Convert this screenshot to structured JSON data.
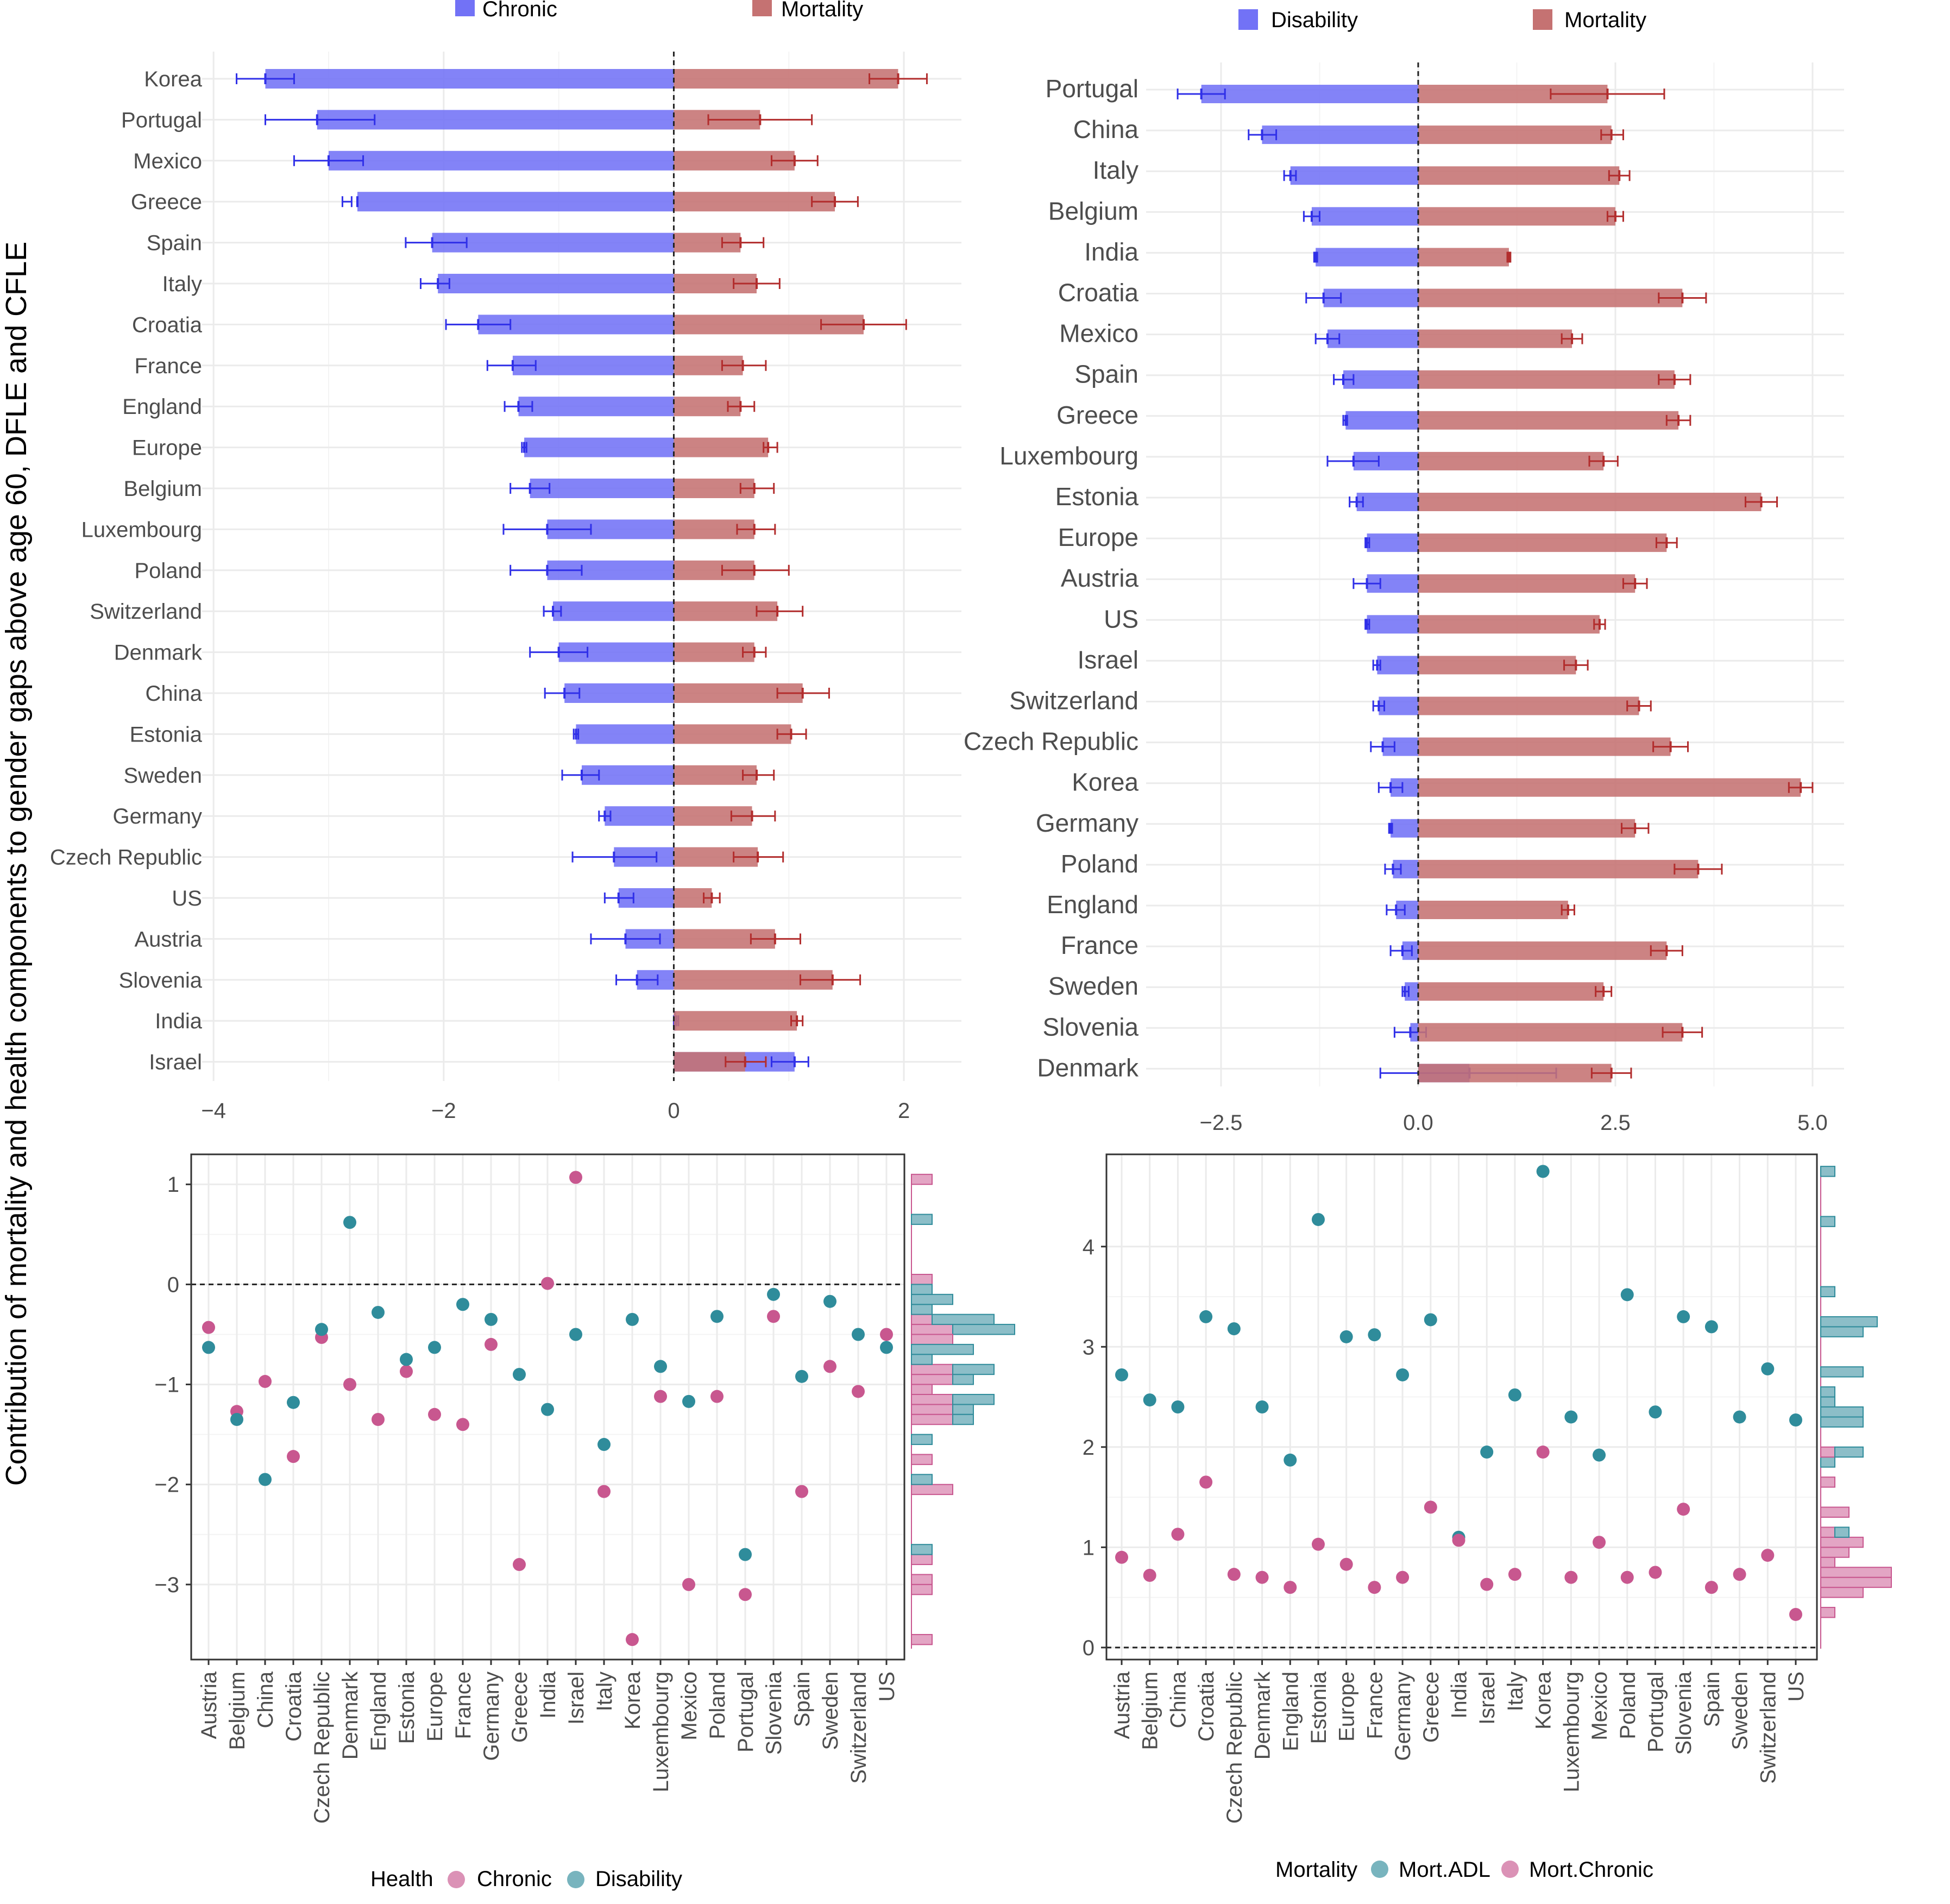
{
  "y_axis_label": "Contribution of mortality and health components to gender gaps above age 60, DFLE and CFLE",
  "colors": {
    "chronic": "#7272f6",
    "disability": "#7272f6",
    "mortality": "#c57272",
    "mort_chronic": "#c8578f",
    "mort_adl": "#2f8c9b",
    "hist_pink": "#e3a5c4",
    "hist_teal": "#8cbec8",
    "grid": "#ebebeb"
  },
  "chart_data": [
    {
      "type": "bar",
      "orientation": "horizontal",
      "panel": "top-left",
      "legend": {
        "placement": "top",
        "entries": [
          "Chronic",
          "Mortality"
        ]
      },
      "xlim": [
        -4.1,
        2.5
      ],
      "xticks": [
        -4,
        -2,
        0,
        2
      ],
      "tick_labels": [
        "−4",
        "−2",
        "0",
        "2"
      ],
      "reference_line_x": 0,
      "categories": [
        "Korea",
        "Portugal",
        "Mexico",
        "Greece",
        "Spain",
        "Italy",
        "Croatia",
        "France",
        "England",
        "Europe",
        "Belgium",
        "Luxembourg",
        "Poland",
        "Switzerland",
        "Denmark",
        "China",
        "Estonia",
        "Sweden",
        "Germany",
        "Czech Republic",
        "US",
        "Austria",
        "Slovenia",
        "India",
        "Israel"
      ],
      "series": [
        {
          "name": "Chronic",
          "values": [
            -3.55,
            -3.1,
            -3.0,
            -2.75,
            -2.1,
            -2.05,
            -1.7,
            -1.4,
            -1.35,
            -1.3,
            -1.25,
            -1.1,
            -1.1,
            -1.05,
            -1.0,
            -0.95,
            -0.85,
            -0.8,
            -0.6,
            -0.52,
            -0.48,
            -0.42,
            -0.32,
            0.02,
            1.05
          ],
          "ci_low": [
            -3.8,
            -3.55,
            -3.3,
            -2.88,
            -2.33,
            -2.2,
            -1.98,
            -1.62,
            -1.47,
            -1.32,
            -1.42,
            -1.48,
            -1.42,
            -1.13,
            -1.25,
            -1.12,
            -0.87,
            -0.97,
            -0.65,
            -0.88,
            -0.6,
            -0.72,
            -0.5,
            0.0,
            0.85
          ],
          "ci_high": [
            -3.3,
            -2.6,
            -2.7,
            -2.8,
            -1.8,
            -1.95,
            -1.42,
            -1.2,
            -1.23,
            -1.28,
            -1.08,
            -0.72,
            -0.8,
            -0.98,
            -0.75,
            -0.82,
            -0.83,
            -0.65,
            -0.55,
            -0.15,
            -0.35,
            -0.12,
            -0.14,
            0.04,
            1.17
          ]
        },
        {
          "name": "Mortality",
          "values": [
            1.95,
            0.75,
            1.05,
            1.4,
            0.58,
            0.72,
            1.65,
            0.6,
            0.58,
            0.82,
            0.7,
            0.7,
            0.7,
            0.9,
            0.7,
            1.12,
            1.02,
            0.72,
            0.68,
            0.73,
            0.33,
            0.88,
            1.38,
            1.07,
            0.62
          ],
          "ci_low": [
            1.7,
            0.3,
            0.85,
            1.2,
            0.42,
            0.52,
            1.28,
            0.42,
            0.47,
            0.78,
            0.58,
            0.55,
            0.42,
            0.72,
            0.6,
            0.9,
            0.9,
            0.6,
            0.5,
            0.52,
            0.26,
            0.67,
            1.1,
            1.02,
            0.45
          ],
          "ci_high": [
            2.2,
            1.2,
            1.25,
            1.6,
            0.78,
            0.92,
            2.02,
            0.8,
            0.7,
            0.9,
            0.87,
            0.88,
            1.0,
            1.12,
            0.8,
            1.35,
            1.15,
            0.87,
            0.88,
            0.95,
            0.4,
            1.1,
            1.62,
            1.12,
            0.8
          ]
        }
      ]
    },
    {
      "type": "bar",
      "orientation": "horizontal",
      "panel": "top-right",
      "legend": {
        "placement": "top",
        "entries": [
          "Disability",
          "Mortality"
        ]
      },
      "xlim": [
        -3.45,
        5.4
      ],
      "xticks": [
        -2.5,
        0.0,
        2.5,
        5.0
      ],
      "tick_labels": [
        "−2.5",
        "0.0",
        "2.5",
        "5.0"
      ],
      "reference_line_x": 0,
      "categories": [
        "Portugal",
        "China",
        "Italy",
        "Belgium",
        "India",
        "Croatia",
        "Mexico",
        "Spain",
        "Greece",
        "Luxembourg",
        "Estonia",
        "Europe",
        "Austria",
        "US",
        "Israel",
        "Switzerland",
        "Czech Republic",
        "Korea",
        "Germany",
        "Poland",
        "England",
        "France",
        "Sweden",
        "Slovenia",
        "Denmark"
      ],
      "series": [
        {
          "name": "Disability",
          "values": [
            -2.75,
            -1.98,
            -1.62,
            -1.35,
            -1.3,
            -1.2,
            -1.15,
            -0.95,
            -0.92,
            -0.82,
            -0.78,
            -0.65,
            -0.65,
            -0.65,
            -0.52,
            -0.5,
            -0.45,
            -0.35,
            -0.35,
            -0.32,
            -0.28,
            -0.2,
            -0.17,
            -0.1,
            0.65
          ],
          "ci_low": [
            -3.05,
            -2.15,
            -1.7,
            -1.45,
            -1.32,
            -1.42,
            -1.3,
            -1.07,
            -0.95,
            -1.15,
            -0.87,
            -0.67,
            -0.82,
            -0.67,
            -0.57,
            -0.57,
            -0.6,
            -0.5,
            -0.37,
            -0.42,
            -0.4,
            -0.35,
            -0.2,
            -0.3,
            -0.48
          ],
          "ci_high": [
            -2.45,
            -1.8,
            -1.55,
            -1.25,
            -1.28,
            -0.98,
            -1.0,
            -0.82,
            -0.9,
            -0.5,
            -0.7,
            -0.62,
            -0.48,
            -0.62,
            -0.48,
            -0.43,
            -0.3,
            -0.2,
            -0.33,
            -0.22,
            -0.17,
            -0.08,
            -0.12,
            0.1,
            1.75
          ]
        },
        {
          "name": "Mortality",
          "values": [
            2.4,
            2.45,
            2.55,
            2.5,
            1.15,
            3.35,
            1.95,
            3.25,
            3.3,
            2.35,
            4.35,
            3.15,
            2.75,
            2.3,
            2.0,
            2.8,
            3.2,
            4.85,
            2.75,
            3.55,
            1.9,
            3.15,
            2.35,
            3.35,
            2.45
          ],
          "ci_low": [
            1.68,
            2.32,
            2.42,
            2.4,
            1.13,
            3.05,
            1.82,
            3.05,
            3.15,
            2.17,
            4.15,
            3.02,
            2.6,
            2.23,
            1.85,
            2.65,
            2.98,
            4.7,
            2.58,
            3.25,
            1.82,
            2.95,
            2.25,
            3.1,
            2.2
          ],
          "ci_high": [
            3.12,
            2.6,
            2.68,
            2.6,
            1.17,
            3.65,
            2.08,
            3.45,
            3.45,
            2.53,
            4.55,
            3.28,
            2.9,
            2.37,
            2.15,
            2.95,
            3.42,
            5.0,
            2.92,
            3.85,
            1.98,
            3.35,
            2.45,
            3.6,
            2.7
          ]
        }
      ]
    },
    {
      "type": "scatter",
      "panel": "bottom-left",
      "legend": {
        "placement": "bottom",
        "title": "Health",
        "entries": [
          "Chronic",
          "Disability"
        ]
      },
      "ylim": [
        -3.75,
        1.3
      ],
      "yticks": [
        1,
        0,
        -1,
        -2,
        -3
      ],
      "tick_labels": [
        "1",
        "0",
        "−1",
        "−2",
        "−3"
      ],
      "reference_line_y": 0,
      "categories": [
        "Austria",
        "Belgium",
        "China",
        "Croatia",
        "Czech Republic",
        "Denmark",
        "England",
        "Estonia",
        "Europe",
        "France",
        "Germany",
        "Greece",
        "India",
        "Israel",
        "Italy",
        "Korea",
        "Luxembourg",
        "Mexico",
        "Poland",
        "Portugal",
        "Slovenia",
        "Spain",
        "Sweden",
        "Switzerland",
        "US"
      ],
      "series": [
        {
          "name": "Chronic",
          "values": [
            -0.43,
            -1.27,
            -0.97,
            -1.72,
            -0.53,
            -1.0,
            -1.35,
            -0.87,
            -1.3,
            -1.4,
            -0.6,
            -2.8,
            0.01,
            1.07,
            -2.07,
            -3.55,
            -1.12,
            -3.0,
            -1.12,
            -3.1,
            -0.32,
            -2.07,
            -0.82,
            -1.07,
            -0.5
          ]
        },
        {
          "name": "Disability",
          "values": [
            -0.63,
            -1.35,
            -1.95,
            -1.18,
            -0.45,
            0.62,
            -0.28,
            -0.75,
            -0.63,
            -0.2,
            -0.35,
            -0.9,
            -1.25,
            -0.5,
            -1.6,
            -0.35,
            -0.82,
            -1.17,
            -0.32,
            -2.7,
            -0.1,
            -0.92,
            -0.17,
            -0.5,
            -0.63
          ]
        }
      ]
    },
    {
      "type": "scatter",
      "panel": "bottom-right",
      "legend": {
        "placement": "bottom",
        "title": "Mortality",
        "entries": [
          "Mort.ADL",
          "Mort.Chronic"
        ]
      },
      "ylim": [
        -0.12,
        4.92
      ],
      "yticks": [
        0,
        1,
        2,
        3,
        4
      ],
      "tick_labels": [
        "0",
        "1",
        "2",
        "3",
        "4"
      ],
      "reference_line_y": 0,
      "categories": [
        "Austria",
        "Belgium",
        "China",
        "Croatia",
        "Czech Republic",
        "Denmark",
        "England",
        "Estonia",
        "Europe",
        "France",
        "Germany",
        "Greece",
        "India",
        "Israel",
        "Italy",
        "Korea",
        "Luxembourg",
        "Mexico",
        "Poland",
        "Portugal",
        "Slovenia",
        "Spain",
        "Sweden",
        "Switzerland",
        "US"
      ],
      "series": [
        {
          "name": "Mort.ADL",
          "values": [
            2.72,
            2.47,
            2.4,
            3.3,
            3.18,
            2.4,
            1.87,
            4.27,
            3.1,
            3.12,
            2.72,
            3.27,
            1.1,
            1.95,
            2.52,
            4.75,
            2.3,
            1.92,
            3.52,
            2.35,
            3.3,
            3.2,
            2.3,
            2.78,
            2.27
          ]
        },
        {
          "name": "Mort.Chronic",
          "values": [
            0.9,
            0.72,
            1.13,
            1.65,
            0.73,
            0.7,
            0.6,
            1.03,
            0.83,
            0.6,
            0.7,
            1.4,
            1.07,
            0.63,
            0.73,
            1.95,
            0.7,
            1.05,
            0.7,
            0.75,
            1.38,
            0.6,
            0.73,
            0.92,
            0.33
          ]
        }
      ]
    }
  ]
}
